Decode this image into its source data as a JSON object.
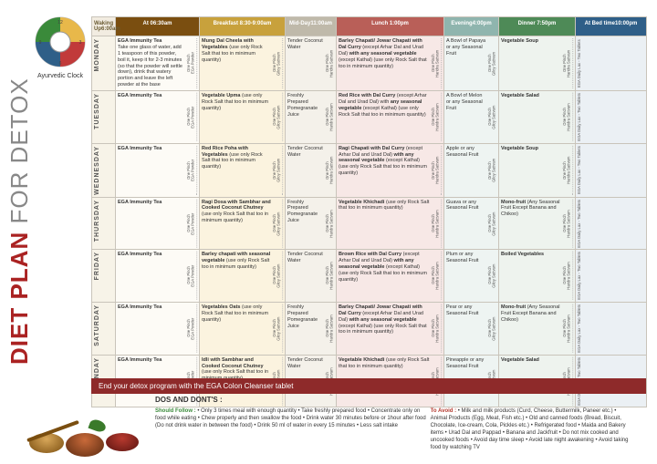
{
  "title_red": "DIET PLAN",
  "title_thin": " FOR DETOX",
  "clock_label": "Ayurvedic Clock",
  "headers": {
    "wk": {
      "t": "Waking Up",
      "s": "6:00am"
    },
    "h06": {
      "t": "At 06:30am",
      "s": ""
    },
    "brk": {
      "t": "Breakfast 8:30-9:00am",
      "s": ""
    },
    "mid": {
      "t": "Mid-Day",
      "s": "11:00am"
    },
    "lun": {
      "t": "Lunch 1:00pm",
      "s": ""
    },
    "eve": {
      "t": "Evening",
      "s": "4:00pm"
    },
    "din": {
      "t": "Dinner 7:50pm",
      "s": ""
    },
    "bed": {
      "t": "At Bed time",
      "s": "10:00pm"
    }
  },
  "side_pinch": "One Pinch",
  "side_giloy": "Giloy Sattvam",
  "side_haridra": "Haridra Sattvam",
  "side_ega": "EGA Powder",
  "side_lax": "EGA Daily Lax - Two Tablets",
  "days": [
    "MONDAY",
    "TUESDAY",
    "WEDNESDAY",
    "THURSDAY",
    "FRIDAY",
    "SATURDAY",
    "SUNDAY"
  ],
  "rows": [
    {
      "h06": "<b>EGA Immunity Tea</b><br>Take one glass of water, add 1 teaspoon of this powder, boil it, keep it for 2-3 minutes (so that the powder will settle down), drink that watery portion and leave the left powder at the base",
      "brk": "<b>Mung Dal Cheela with Vegetables</b> (use only Rock Salt that too in minimum quantity)",
      "mid": "Tender Coconut Water",
      "lun": "<b>Barley Chapati/ Jowar Chapati with Dal Curry</b> (except Arhar Dal and Urad Dal) <b>with any seasonal vegetable</b> (except Kathal) (use only Rock Salt that too in minimum quantity)",
      "eve": "A Bowl of Papaya or any Seasonal Fruit",
      "din": "<b>Vegetable Soup</b>"
    },
    {
      "h06": "<b>EGA Immunity Tea</b>",
      "brk": "<b>Vegetable Upma</b> (use only Rock Salt that too in minimum quantity)",
      "mid": "Freshly Prepared Pomegranate Juice",
      "lun": "<b>Red Rice with Dal Curry</b> (except Arhar Dal and Urad Dal) with <b>any seasonal vegetable</b> (except Kathal) (use only Rock Salt that too in minimum quantity)",
      "eve": "A Bowl of Melon or any Seasonal Fruit",
      "din": "<b>Vegetable Salad</b>"
    },
    {
      "h06": "<b>EGA Immunity Tea</b>",
      "brk": "<b>Red Rice Poha with Vegetables</b> (use only Rock Salt that too in minimum quantity)",
      "mid": "Tender Coconut Water",
      "lun": "<b>Ragi Chapati with Dal Curry</b> (except Arhar Dal and Urad Dal) <b>with any seasonal vegetable</b> (except Kathal) (use only Rock Salt that too in minimum quantity)",
      "eve": "Apple or any Seasonal Fruit",
      "din": "<b>Vegetable Soup</b>"
    },
    {
      "h06": "<b>EGA Immunity Tea</b>",
      "brk": "<b>Ragi Dosa with Sambhar and Cooked Coconut Chutney</b> (use only Rock Salt that too in minimum quantity)",
      "mid": "Freshly Prepared Pomegranate Juice",
      "lun": "<b>Vegetable Khichadi</b> (use only Rock Salt that too in minimum quantity)",
      "eve": "Guava or any Seasonal Fruit",
      "din": "<b>Mono-fruit</b> (Any Seasonal Fruit Except Banana and Chikoo)"
    },
    {
      "h06": "<b>EGA Immunity Tea</b>",
      "brk": "<b>Barley chapati with seasonal vegetable</b> (use only Rock Salt too in minimum quantity)",
      "mid": "Tender Coconut Water",
      "lun": "<b>Brown Rice with Dal Curry</b> (except Arhar Dal and Urad Dal) <b>with any seasonal vegetable</b> (except Kathal) (use only Rock Salt that too in minimum quantity)",
      "eve": "Plum or any Seasonal Fruit",
      "din": "<b>Boiled Vegetables</b>"
    },
    {
      "h06": "<b>EGA Immunity Tea</b>",
      "brk": "<b>Vegetables Oats</b> (use only Rock Salt that too in minimum quantity)",
      "mid": "Freshly Prepared Pomegranate Juice",
      "lun": "<b>Barley Chapati/ Jowar Chapati with Dal Curry</b> (except Arhar Dal and Urad Dal) <b>with any seasonal vegetable</b> (except Kathal) (use only Rock Salt that too in minimum quantity)",
      "eve": "Pear or any Seasonal Fruit",
      "din": "<b>Mono-fruit</b> (Any Seasonal Fruit Except Banana and Chikoo)"
    },
    {
      "h06": "<b>EGA Immunity Tea</b>",
      "brk": "<b>Idli with Sambhar and Cooked Coconut Chutney</b> (use only Rock Salt that too in minimum quantity)",
      "mid": "Tender Coconut Water",
      "lun": "<b>Vegetable Khichadi</b> (use only Rock Salt that too in minimum quantity)",
      "eve": "Pineapple or any Seasonal Fruit",
      "din": "<b>Vegetable Salad</b>"
    }
  ],
  "banner": "End your detox program with the EGA Colon Cleanser tablet",
  "dos_title": "DOS AND DONT'S :",
  "should_label": "Should Follow :",
  "should_text": " • Only 3 times meal with enough quantity • Take freshly prepared food • Concentrate only on food while eating • Chew properly and then swallow the food • Drink water 30 minutes before or 1hour after food (Do not drink water in between the food) • Drink 50 ml of water in every 15 minutes • Less salt intake",
  "avoid_label": "To Avoid :",
  "avoid_text": " • Milk and milk products (Curd, Cheese, Buttermilk, Paneer etc.) • Animal Products (Egg, Meat, Fish etc.) • Old and canned foods (Bread, Biscuit, Chocolate, Ice-cream, Cola, Pickles etc.) • Refrigerated food • Maida and Bakery items • Urad Dal and Pappad • Banana and Jackfruit • Do not mix cooked and uncooked foods • Avoid day time sleep • Avoid late night awakening • Avoid taking food by watching TV",
  "colors": {
    "clock": [
      "#c13a3a",
      "#e8b84a",
      "#3a8a3a",
      "#2f5f88"
    ]
  }
}
